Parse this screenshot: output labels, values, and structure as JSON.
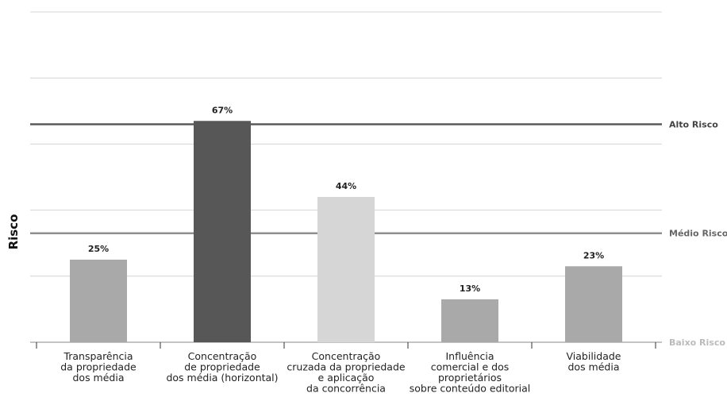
{
  "chart_data": {
    "type": "bar",
    "ylabel": "Risco",
    "xlabel": "",
    "ylim": [
      0,
      100
    ],
    "grid": true,
    "categories": [
      [
        "Transparência",
        "da propriedade",
        "dos média"
      ],
      [
        "Concentração",
        "de propriedade",
        "dos média (horizontal)"
      ],
      [
        "Concentração",
        "cruzada da propriedade",
        "e aplicação",
        "da concorrência"
      ],
      [
        "Influência",
        "comercial e dos",
        "proprietários",
        "sobre conteúdo editorial"
      ],
      [
        "Viabilidade",
        "dos média"
      ]
    ],
    "values": [
      25,
      67,
      44,
      13,
      23
    ],
    "value_labels": [
      "25%",
      "67%",
      "44%",
      "13%",
      "23%"
    ],
    "bar_colors": [
      "#a9a9a9",
      "#575757",
      "#d6d6d6",
      "#a9a9a9",
      "#a9a9a9"
    ],
    "thresholds": [
      {
        "label": "Alto Risco",
        "value": 66,
        "color": "#5a5a5a",
        "label_color": "#444444"
      },
      {
        "label": "Médio Risco",
        "value": 33,
        "color": "#8f8f8f",
        "label_color": "#666666"
      },
      {
        "label": "Baixo Risco",
        "value": 0,
        "color": "#c4c4c4",
        "label_color": "#bbbbbb"
      }
    ]
  }
}
